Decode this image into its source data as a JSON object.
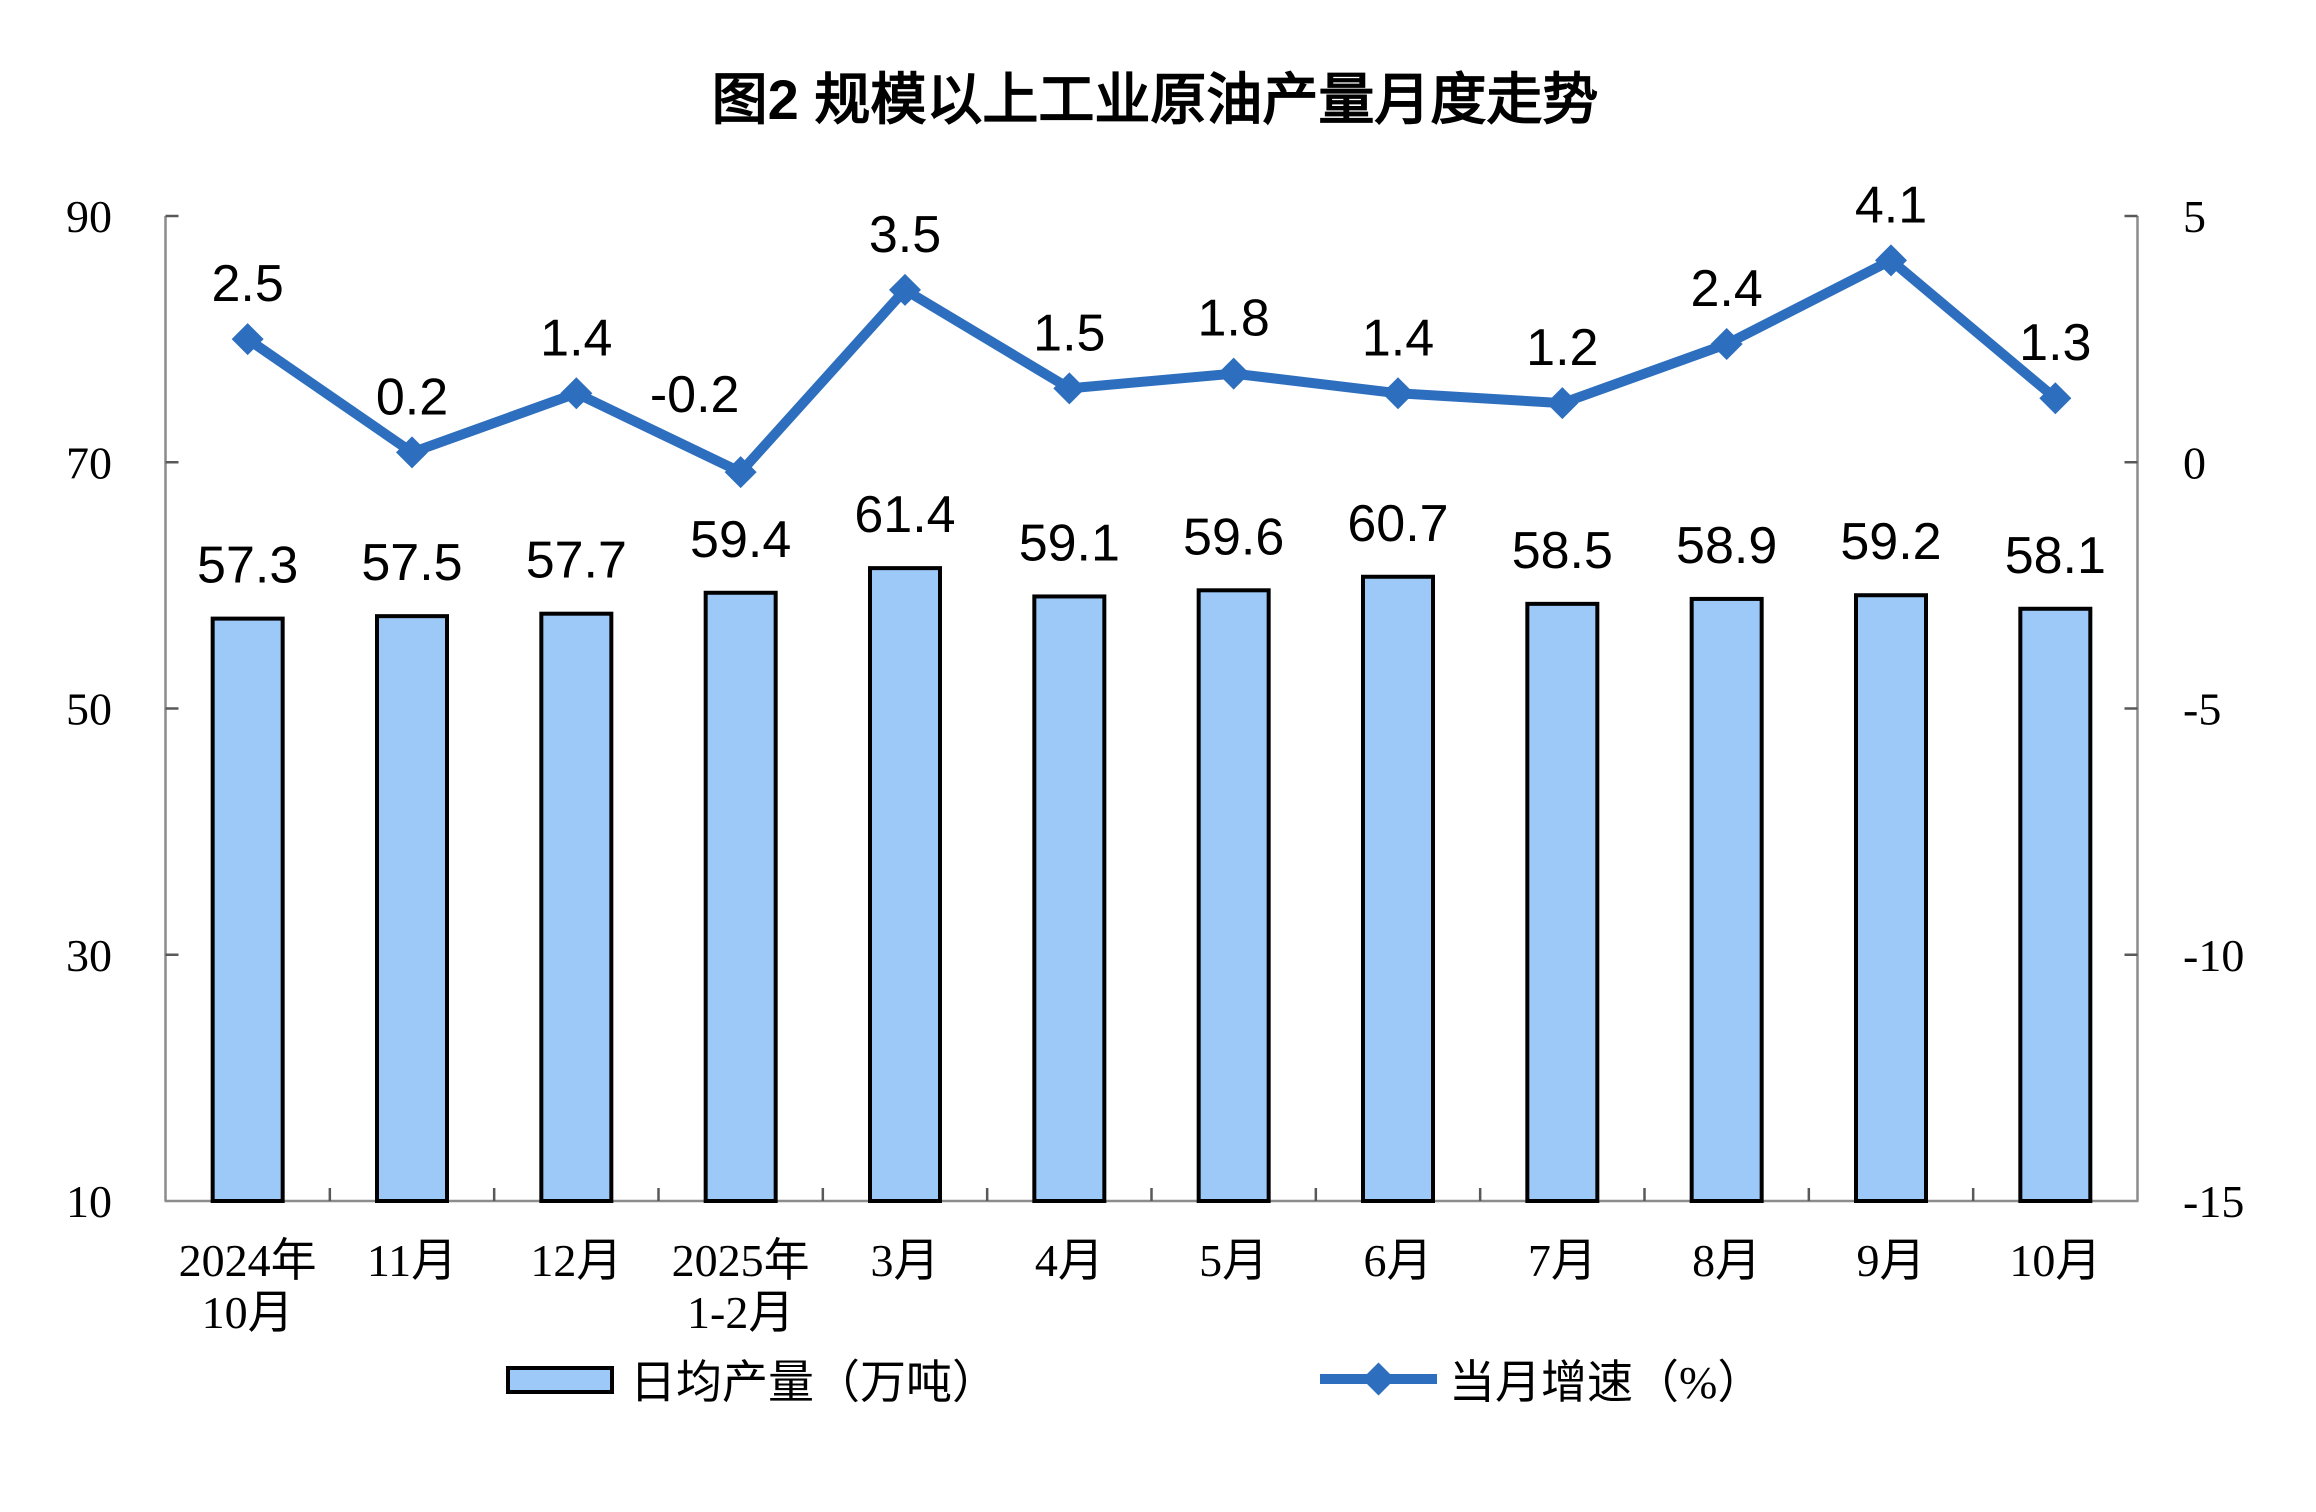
{
  "title": "图2 规模以上工业原油产量月度走势",
  "chart_data": {
    "type": "combo-bar-line",
    "categories": [
      [
        "2024年",
        "10月"
      ],
      [
        "11月"
      ],
      [
        "12月"
      ],
      [
        "2025年",
        "1-2月"
      ],
      [
        "3月"
      ],
      [
        "4月"
      ],
      [
        "5月"
      ],
      [
        "6月"
      ],
      [
        "7月"
      ],
      [
        "8月"
      ],
      [
        "9月"
      ],
      [
        "10月"
      ]
    ],
    "series": [
      {
        "name": "日均产量（万吨）",
        "type": "bar",
        "axis": "left",
        "values": [
          57.3,
          57.5,
          57.7,
          59.4,
          61.4,
          59.1,
          59.6,
          60.7,
          58.5,
          58.9,
          59.2,
          58.1
        ]
      },
      {
        "name": "当月增速（%）",
        "type": "line",
        "axis": "right",
        "values": [
          2.5,
          0.2,
          1.4,
          -0.2,
          3.5,
          1.5,
          1.8,
          1.4,
          1.2,
          2.4,
          4.1,
          1.3
        ]
      }
    ],
    "left_axis": {
      "min": 10,
      "max": 90,
      "ticks": [
        90,
        70,
        50,
        30,
        10
      ]
    },
    "right_axis": {
      "min": -15,
      "max": 5,
      "ticks": [
        5,
        0,
        -5,
        -10,
        -15
      ]
    },
    "grid": false,
    "legend_position": "bottom",
    "colors": {
      "bar_fill": "#9CC9F8",
      "bar_stroke": "#000000",
      "line": "#2D6FBE",
      "axis_line": "#8C8C8C",
      "tick": "#595959",
      "text": "#000000",
      "background": "#FFFFFF"
    }
  }
}
